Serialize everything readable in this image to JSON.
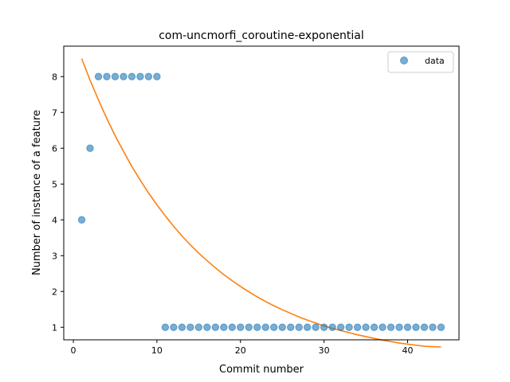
{
  "chart_data": {
    "type": "scatter",
    "title": "com-uncmorfi_coroutine-exponential",
    "xlabel": "Commit number",
    "ylabel": "Number of instance of a feature",
    "xlim": [
      -1.15,
      46.15
    ],
    "ylim": [
      0.65,
      8.85
    ],
    "xticks": [
      0,
      10,
      20,
      30,
      40
    ],
    "yticks": [
      1,
      2,
      3,
      4,
      5,
      6,
      7,
      8
    ],
    "legend": {
      "position": "top-right",
      "entries": [
        "data"
      ]
    },
    "grid": false,
    "series": [
      {
        "name": "data",
        "kind": "scatter",
        "color": "#1f77b4",
        "x": [
          1,
          2,
          3,
          4,
          5,
          6,
          7,
          8,
          9,
          10,
          11,
          12,
          13,
          14,
          15,
          16,
          17,
          18,
          19,
          20,
          21,
          22,
          23,
          24,
          25,
          26,
          27,
          28,
          29,
          30,
          31,
          32,
          33,
          34,
          35,
          36,
          37,
          38,
          39,
          40,
          41,
          42,
          43,
          44
        ],
        "y": [
          4,
          6,
          8,
          8,
          8,
          8,
          8,
          8,
          8,
          8,
          1,
          1,
          1,
          1,
          1,
          1,
          1,
          1,
          1,
          1,
          1,
          1,
          1,
          1,
          1,
          1,
          1,
          1,
          1,
          1,
          1,
          1,
          1,
          1,
          1,
          1,
          1,
          1,
          1,
          1,
          1,
          1,
          1,
          1
        ]
      },
      {
        "kind": "line",
        "color": "#ff7f0e",
        "x": [
          1,
          2,
          3,
          4,
          5,
          6,
          7,
          8,
          9,
          10,
          11,
          12,
          13,
          14,
          15,
          16,
          17,
          18,
          19,
          20,
          21,
          22,
          23,
          24,
          25,
          26,
          27,
          28,
          29,
          30,
          31,
          32,
          33,
          34,
          35,
          36,
          37,
          38,
          39,
          40,
          41,
          42,
          43,
          44
        ],
        "y": [
          8.5,
          7.9,
          7.35,
          6.83,
          6.35,
          5.91,
          5.49,
          5.11,
          4.75,
          4.42,
          4.11,
          3.82,
          3.55,
          3.3,
          3.07,
          2.86,
          2.66,
          2.47,
          2.3,
          2.14,
          1.99,
          1.85,
          1.72,
          1.6,
          1.49,
          1.39,
          1.29,
          1.2,
          1.12,
          1.04,
          0.97,
          0.91,
          0.85,
          0.79,
          0.74,
          0.69,
          0.64,
          0.6,
          0.56,
          0.53,
          0.5,
          0.47,
          0.46,
          0.45
        ]
      }
    ]
  }
}
